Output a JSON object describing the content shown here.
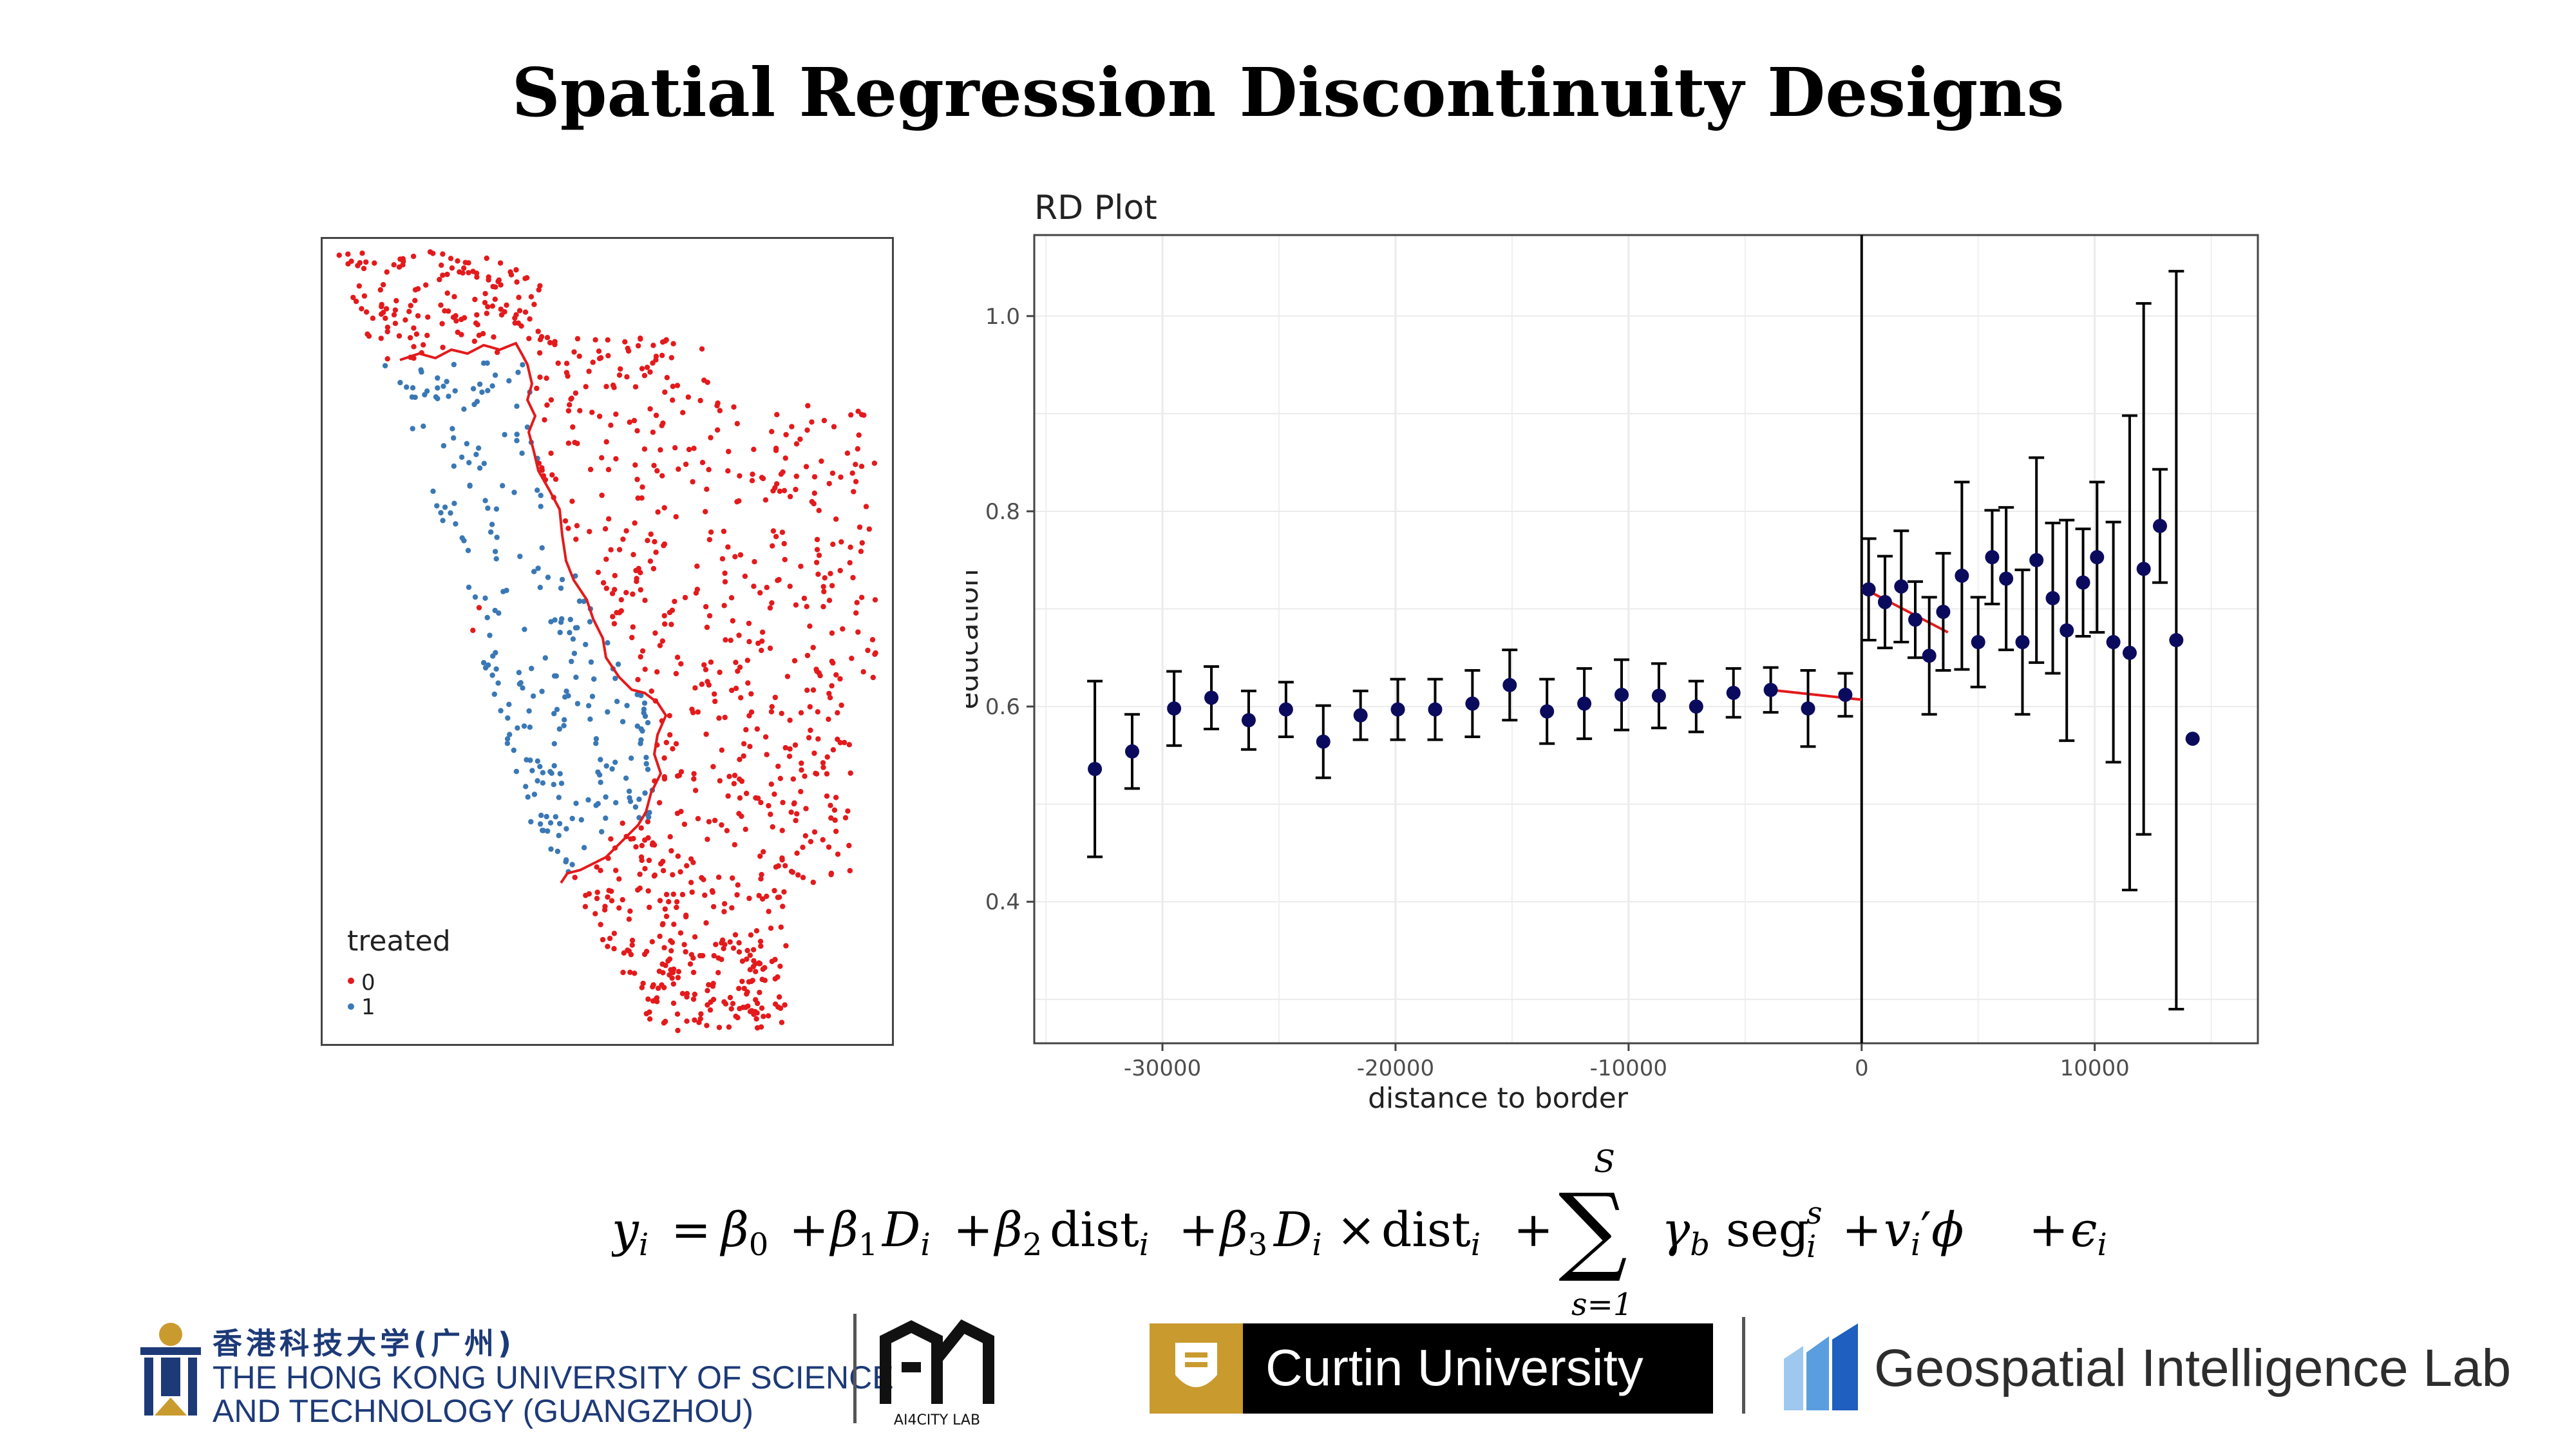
{
  "slide": {
    "title": "Spatial Regression Discontinuity Designs"
  },
  "map": {
    "legend_title": "treated",
    "legend_items": [
      {
        "label": "0",
        "color": "#e31a1c"
      },
      {
        "label": "1",
        "color": "#3a78b5"
      }
    ],
    "border_color": "#e31a1c"
  },
  "chart_data": {
    "type": "scatter",
    "title": "RD Plot",
    "xlabel": "distance to border",
    "ylabel": "education",
    "xlim": [
      -35500,
      17000
    ],
    "ylim": [
      0.255,
      1.083
    ],
    "x_ticks": [
      -30000,
      -20000,
      -10000,
      0,
      10000
    ],
    "x_tick_labels": [
      "-30000",
      "-20000",
      "-10000",
      "0",
      "10000"
    ],
    "y_ticks": [
      0.4,
      0.6,
      0.8,
      1.0
    ],
    "y_tick_labels": [
      "0.4",
      "0.6",
      "0.8",
      "1.0"
    ],
    "grid": true,
    "cutoff_x": 0,
    "point_color": "#0b0b5e",
    "fit_color": "#e31a1c",
    "points": [
      {
        "x": -32900,
        "y": 0.536,
        "lo": 0.446,
        "hi": 0.626
      },
      {
        "x": -31300,
        "y": 0.554,
        "lo": 0.516,
        "hi": 0.592
      },
      {
        "x": -29500,
        "y": 0.598,
        "lo": 0.56,
        "hi": 0.636
      },
      {
        "x": -27900,
        "y": 0.609,
        "lo": 0.577,
        "hi": 0.641
      },
      {
        "x": -26300,
        "y": 0.586,
        "lo": 0.556,
        "hi": 0.616
      },
      {
        "x": -24700,
        "y": 0.597,
        "lo": 0.569,
        "hi": 0.625
      },
      {
        "x": -23100,
        "y": 0.564,
        "lo": 0.527,
        "hi": 0.601
      },
      {
        "x": -21500,
        "y": 0.591,
        "lo": 0.566,
        "hi": 0.616
      },
      {
        "x": -19900,
        "y": 0.597,
        "lo": 0.566,
        "hi": 0.628
      },
      {
        "x": -18300,
        "y": 0.597,
        "lo": 0.566,
        "hi": 0.628
      },
      {
        "x": -16700,
        "y": 0.603,
        "lo": 0.569,
        "hi": 0.637
      },
      {
        "x": -15100,
        "y": 0.622,
        "lo": 0.586,
        "hi": 0.658
      },
      {
        "x": -13500,
        "y": 0.595,
        "lo": 0.562,
        "hi": 0.628
      },
      {
        "x": -11900,
        "y": 0.603,
        "lo": 0.567,
        "hi": 0.639
      },
      {
        "x": -10300,
        "y": 0.612,
        "lo": 0.576,
        "hi": 0.648
      },
      {
        "x": -8700,
        "y": 0.611,
        "lo": 0.578,
        "hi": 0.644
      },
      {
        "x": -7100,
        "y": 0.6,
        "lo": 0.574,
        "hi": 0.626
      },
      {
        "x": -5500,
        "y": 0.614,
        "lo": 0.589,
        "hi": 0.639
      },
      {
        "x": -3900,
        "y": 0.617,
        "lo": 0.594,
        "hi": 0.64
      },
      {
        "x": -2300,
        "y": 0.598,
        "lo": 0.559,
        "hi": 0.637
      },
      {
        "x": -700,
        "y": 0.612,
        "lo": 0.59,
        "hi": 0.634
      },
      {
        "x": 300,
        "y": 0.72,
        "lo": 0.668,
        "hi": 0.772
      },
      {
        "x": 1000,
        "y": 0.707,
        "lo": 0.66,
        "hi": 0.754
      },
      {
        "x": 1700,
        "y": 0.723,
        "lo": 0.666,
        "hi": 0.78
      },
      {
        "x": 2300,
        "y": 0.689,
        "lo": 0.65,
        "hi": 0.728
      },
      {
        "x": 2900,
        "y": 0.652,
        "lo": 0.592,
        "hi": 0.712
      },
      {
        "x": 3500,
        "y": 0.697,
        "lo": 0.637,
        "hi": 0.757
      },
      {
        "x": 4300,
        "y": 0.734,
        "lo": 0.638,
        "hi": 0.83
      },
      {
        "x": 5000,
        "y": 0.666,
        "lo": 0.62,
        "hi": 0.712
      },
      {
        "x": 5600,
        "y": 0.753,
        "lo": 0.705,
        "hi": 0.801
      },
      {
        "x": 6200,
        "y": 0.731,
        "lo": 0.658,
        "hi": 0.804
      },
      {
        "x": 6900,
        "y": 0.666,
        "lo": 0.592,
        "hi": 0.74
      },
      {
        "x": 7500,
        "y": 0.75,
        "lo": 0.645,
        "hi": 0.855
      },
      {
        "x": 8200,
        "y": 0.711,
        "lo": 0.634,
        "hi": 0.788
      },
      {
        "x": 8800,
        "y": 0.678,
        "lo": 0.565,
        "hi": 0.791
      },
      {
        "x": 9500,
        "y": 0.727,
        "lo": 0.672,
        "hi": 0.782
      },
      {
        "x": 10100,
        "y": 0.753,
        "lo": 0.676,
        "hi": 0.83
      },
      {
        "x": 10800,
        "y": 0.666,
        "lo": 0.543,
        "hi": 0.789
      },
      {
        "x": 11500,
        "y": 0.655,
        "lo": 0.412,
        "hi": 0.898
      },
      {
        "x": 12100,
        "y": 0.741,
        "lo": 0.469,
        "hi": 1.013
      },
      {
        "x": 12800,
        "y": 0.785,
        "lo": 0.727,
        "hi": 0.843
      },
      {
        "x": 13500,
        "y": 0.668,
        "lo": 0.29,
        "hi": 1.046
      },
      {
        "x": 14200,
        "y": 0.567,
        "lo": 0.567,
        "hi": 0.567
      }
    ],
    "fit_segments": [
      {
        "x": [
          -3900,
          0
        ],
        "y": [
          0.617,
          0.607
        ]
      },
      {
        "x": [
          0,
          3700
        ],
        "y": [
          0.722,
          0.676
        ]
      }
    ]
  },
  "formula": {
    "lhs": "y",
    "sub_i": "i",
    "eq": "=",
    "beta": "β",
    "b0": "0",
    "b1": "1",
    "b2": "2",
    "b3": "3",
    "plus": "+",
    "D": "D",
    "dist": "dist",
    "times": "×",
    "sum": "∑",
    "sum_upper": "S",
    "sum_lower": "s=1",
    "gamma": "γ",
    "gamma_sub": "b",
    "seg": "seg",
    "seg_sup": "s",
    "nu": "v",
    "prime": "′",
    "phi": "ϕ",
    "eps": "ϵ"
  },
  "logos": {
    "hkust_cn": "香港科技大学(广州)",
    "hkust_en_1": "THE HONG KONG UNIVERSITY OF SCIENCE",
    "hkust_en_2": "AND TECHNOLOGY (GUANGZHOU)",
    "ai4city_label": "AI4CITY LAB",
    "curtin": "Curtin University",
    "geo_lab": "Geospatial Intelligence Lab"
  }
}
